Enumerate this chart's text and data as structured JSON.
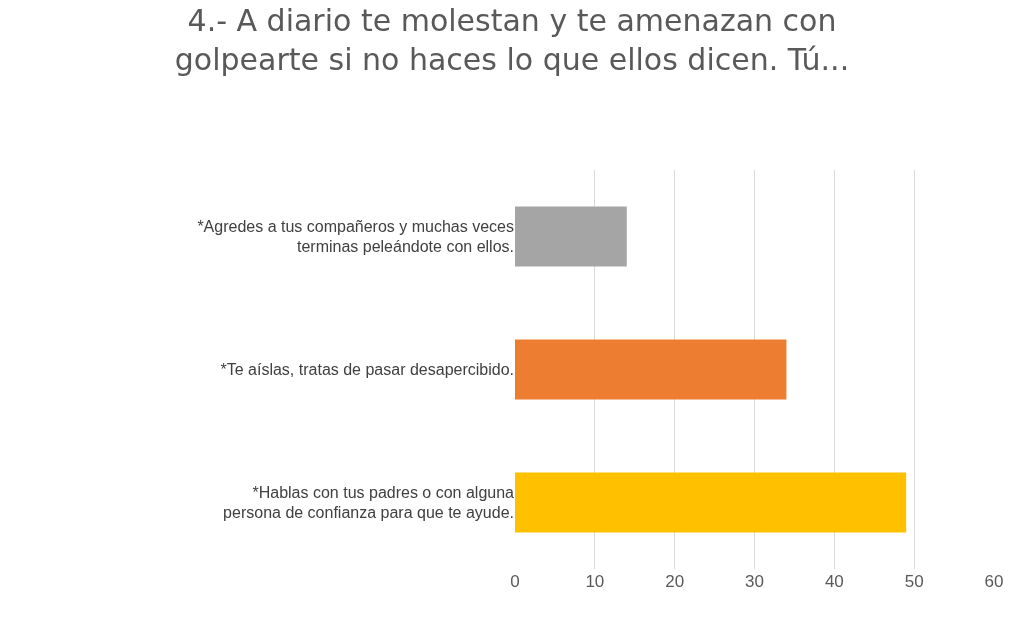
{
  "chart_data": {
    "type": "bar",
    "orientation": "horizontal",
    "title": "4.- A diario te molestan y te amenazan con golpearte si no haces lo que ellos dicen. Tú...",
    "categories": [
      "*Agredes a tus compañeros y muchas veces terminas peleándote con ellos.",
      "*Te aíslas, tratas de pasar desapercibido.",
      "*Hablas con tus padres o con alguna persona de confianza para que te ayude."
    ],
    "values": [
      14,
      34,
      49
    ],
    "colors": [
      "#a5a5a5",
      "#ed7d31",
      "#ffc000"
    ],
    "xlim": [
      0,
      60
    ],
    "xticks": [
      0,
      10,
      20,
      30,
      40,
      50,
      60
    ],
    "grid": "x"
  }
}
